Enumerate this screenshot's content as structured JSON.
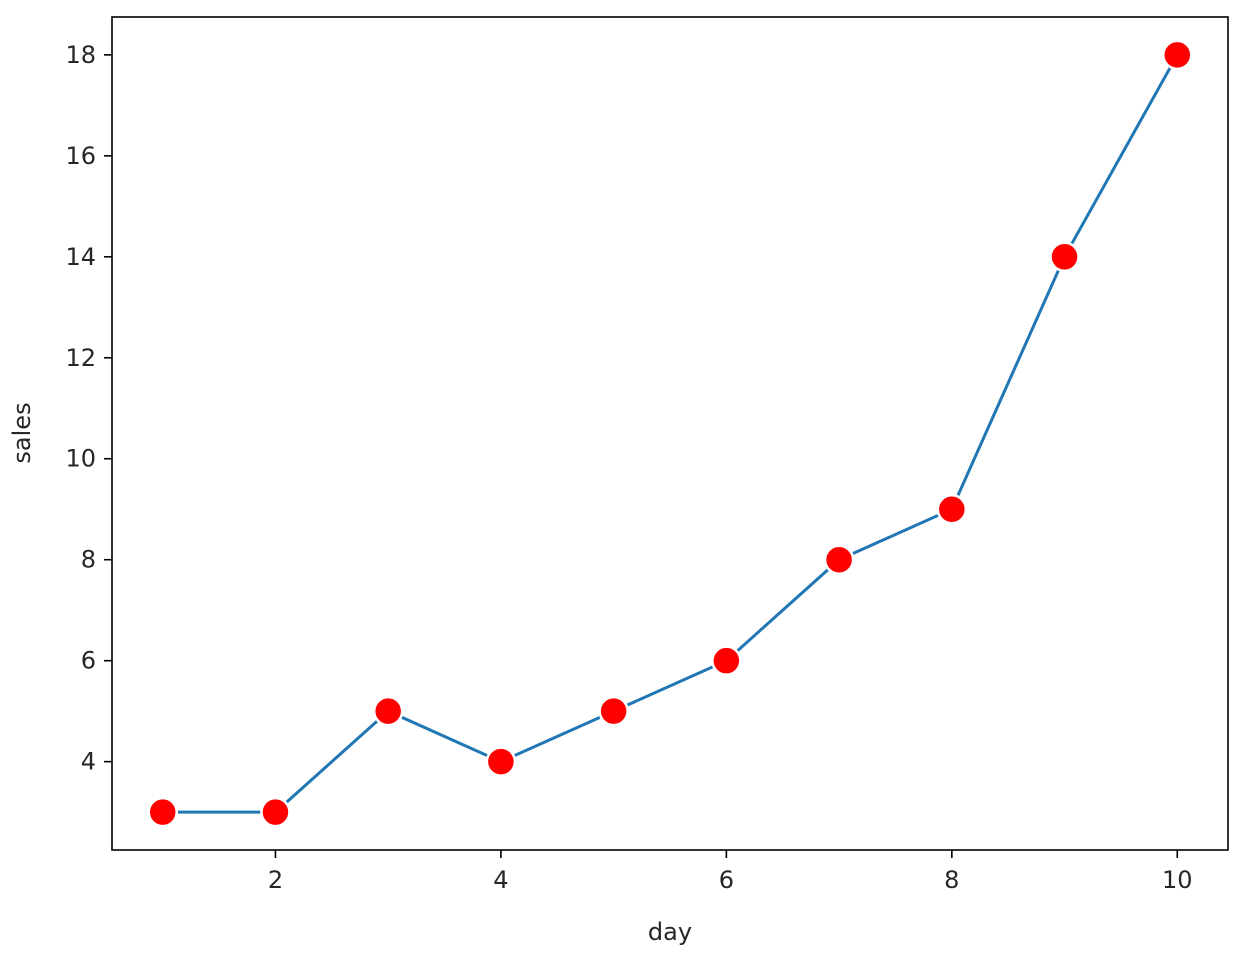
{
  "chart_data": {
    "type": "line",
    "title": "",
    "xlabel": "day",
    "ylabel": "sales",
    "x": [
      1,
      2,
      3,
      4,
      5,
      6,
      7,
      8,
      9,
      10
    ],
    "series": [
      {
        "values": [
          3,
          3,
          5,
          4,
          5,
          6,
          8,
          9,
          14,
          18
        ]
      }
    ],
    "xlim": [
      0.55,
      10.45
    ],
    "ylim": [
      2.25,
      18.75
    ],
    "xticks": [
      2,
      4,
      6,
      8,
      10
    ],
    "yticks": [
      4,
      6,
      8,
      10,
      12,
      14,
      16,
      18
    ],
    "grid": false,
    "colors": {
      "line": "#1f77b4",
      "marker": "#ff0000",
      "marker_edge": "#ffffff",
      "axes": "#000000"
    }
  }
}
